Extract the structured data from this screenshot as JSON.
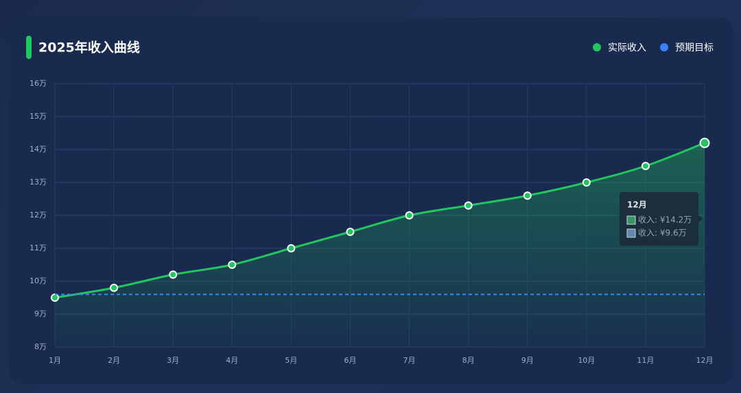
{
  "chart_data": {
    "type": "line",
    "title": "2025年收入曲线",
    "categories": [
      "1月",
      "2月",
      "3月",
      "4月",
      "5月",
      "6月",
      "7月",
      "8月",
      "9月",
      "10月",
      "11月",
      "12月"
    ],
    "series": [
      {
        "name": "实际收入",
        "color": "#22c55e",
        "values": [
          9.5,
          9.8,
          10.2,
          10.5,
          11.0,
          11.5,
          12.0,
          12.3,
          12.6,
          13.0,
          13.5,
          14.2
        ]
      },
      {
        "name": "预期目标",
        "color": "#3b82f6",
        "values": [
          9.6,
          9.6,
          9.6,
          9.6,
          9.6,
          9.6,
          9.6,
          9.6,
          9.6,
          9.6,
          9.6,
          9.6
        ]
      }
    ],
    "ylim": [
      8,
      16
    ],
    "yticks": [
      {
        "value": 8,
        "label": "8万"
      },
      {
        "value": 9,
        "label": "9万"
      },
      {
        "value": 10,
        "label": "10万"
      },
      {
        "value": 11,
        "label": "11万"
      },
      {
        "value": 12,
        "label": "12万"
      },
      {
        "value": 13,
        "label": "13万"
      },
      {
        "value": 14,
        "label": "14万"
      },
      {
        "value": 15,
        "label": "15万"
      },
      {
        "value": 16,
        "label": "16万"
      }
    ],
    "grid": true,
    "legend": "top-right",
    "tooltip": {
      "title": "12月",
      "items": [
        "收入: ¥14.2万",
        "收入: ¥9.6万"
      ]
    }
  }
}
